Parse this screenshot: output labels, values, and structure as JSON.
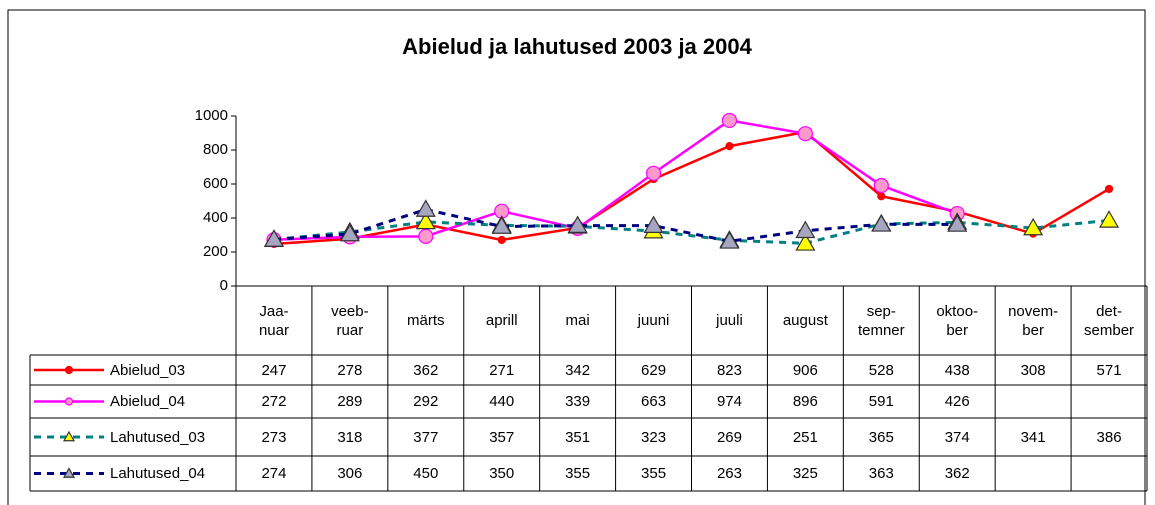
{
  "chart_data": {
    "type": "line",
    "title": "Abielud ja lahutused 2003 ja 2004",
    "categories": [
      "Jaa-\nnuar",
      "veeb-\nruar",
      "märts",
      "aprill",
      "mai",
      "juuni",
      "juuli",
      "august",
      "sep-\ntemner",
      "oktoo-\nber",
      "novem-\nber",
      "det-\nsember"
    ],
    "series": [
      {
        "name": "Abielud_03",
        "color": "#ff0000",
        "values": [
          247,
          278,
          362,
          271,
          342,
          629,
          823,
          906,
          528,
          438,
          308,
          571
        ]
      },
      {
        "name": "Abielud_04",
        "color": "#ff00ff",
        "values": [
          272,
          289,
          292,
          440,
          339,
          663,
          974,
          896,
          591,
          426,
          null,
          null
        ]
      },
      {
        "name": "Lahutused_03",
        "color": "#008080",
        "values": [
          273,
          318,
          377,
          357,
          351,
          323,
          269,
          251,
          365,
          374,
          341,
          386
        ]
      },
      {
        "name": "Lahutused_04",
        "color": "#000080",
        "values": [
          274,
          306,
          450,
          350,
          355,
          355,
          263,
          325,
          363,
          362,
          null,
          null
        ]
      }
    ],
    "ylim": [
      0,
      1000
    ],
    "yticks": [
      0,
      200,
      400,
      600,
      800,
      1000
    ],
    "grid": false
  }
}
